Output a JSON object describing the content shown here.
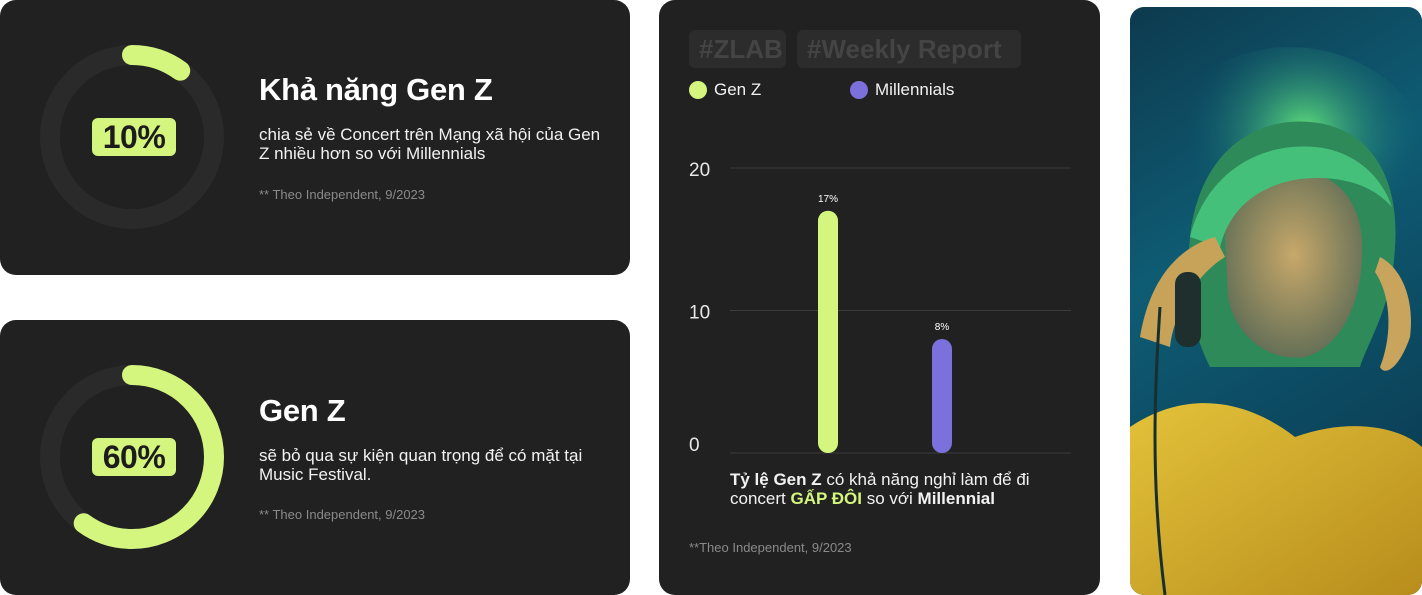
{
  "colors": {
    "accent_green": "#d4f57e",
    "accent_purple": "#7b70dc",
    "card_bg": "#212121",
    "ring_track": "#2a2a2a"
  },
  "stat_cards": [
    {
      "percent": "10%",
      "fraction": 0.1,
      "title": "Khả năng Gen Z",
      "description": "chia sẻ về Concert trên Mạng xã hội của Gen Z nhiều hơn so với Millennials",
      "source": "** Theo Independent, 9/2023"
    },
    {
      "percent": "60%",
      "fraction": 0.6,
      "title": "Gen Z",
      "description": "sẽ bỏ qua sự kiện quan trọng để có mặt tại Music Festival.",
      "source": "** Theo Independent, 9/2023"
    }
  ],
  "report": {
    "tags": [
      "#ZLAB",
      "#Weekly Report"
    ],
    "note": {
      "part1": "Tỷ lệ Gen Z",
      "part2": " có khả năng nghỉ làm để đi concert ",
      "part3": "GẤP ĐÔI",
      "part4": " so với ",
      "part5": "Millennial"
    },
    "source": "**Theo Independent, 9/2023"
  },
  "chart_data": {
    "type": "bar",
    "categories": [
      "Gen Z",
      "Millennials"
    ],
    "values": [
      17,
      8
    ],
    "data_labels": [
      "17%",
      "8%"
    ],
    "series_colors": [
      "#d4f57e",
      "#7b70dc"
    ],
    "legend": [
      "Gen Z",
      "Millennials"
    ],
    "legend_placement": "top",
    "yticks": [
      "0",
      "10",
      "20"
    ],
    "ylim": [
      0,
      20
    ],
    "grid": true
  },
  "photo": {
    "icon": "person-with-headphones-photo"
  }
}
